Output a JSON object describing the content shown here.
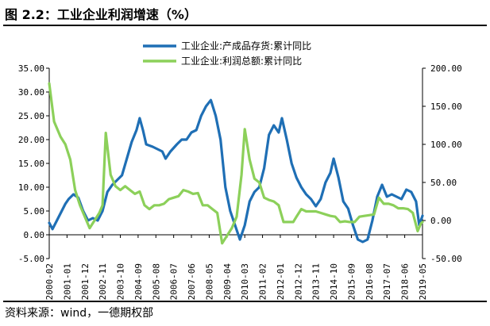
{
  "title": "图 2.2：工业企业利润增速（%）",
  "source": "资料来源：wind，一德期权部",
  "chart_data": {
    "type": "line",
    "left_axis": {
      "min": -5,
      "max": 35,
      "step": 5,
      "ticks": [
        "-5.00",
        "0.00",
        "5.00",
        "10.00",
        "15.00",
        "20.00",
        "25.00",
        "30.00",
        "35.00"
      ]
    },
    "right_axis": {
      "min": -50,
      "max": 200,
      "step": 50,
      "ticks": [
        "-50.00",
        "0.00",
        "50.00",
        "100.00",
        "150.00",
        "200.00"
      ]
    },
    "x_ticks": [
      "2000-02",
      "2001-01",
      "2001-12",
      "2002-11",
      "2003-10",
      "2004-09",
      "2005-08",
      "2006-07",
      "2007-06",
      "2008-05",
      "2009-04",
      "2010-03",
      "2011-02",
      "2012-01",
      "2012-12",
      "2013-11",
      "2014-10",
      "2015-09",
      "2016-08",
      "2017-07",
      "2018-06",
      "2019-05"
    ],
    "legend_position": "top-center",
    "series": [
      {
        "name": "工业企业:产成品存货:累计同比",
        "axis": "left",
        "color": "#1f6fb5",
        "points": [
          [
            "2000-02",
            2.5
          ],
          [
            "2000-04",
            1.2
          ],
          [
            "2000-06",
            2.5
          ],
          [
            "2000-09",
            4.5
          ],
          [
            "2000-12",
            6.5
          ],
          [
            "2001-02",
            7.5
          ],
          [
            "2001-05",
            8.5
          ],
          [
            "2001-08",
            7.8
          ],
          [
            "2001-11",
            5
          ],
          [
            "2002-02",
            3
          ],
          [
            "2002-05",
            3.5
          ],
          [
            "2002-08",
            3
          ],
          [
            "2002-11",
            5
          ],
          [
            "2003-02",
            9
          ],
          [
            "2003-05",
            10.5
          ],
          [
            "2003-08",
            11.5
          ],
          [
            "2003-11",
            12.5
          ],
          [
            "2004-02",
            16
          ],
          [
            "2004-05",
            19.5
          ],
          [
            "2004-08",
            22
          ],
          [
            "2004-10",
            24.5
          ],
          [
            "2004-12",
            22
          ],
          [
            "2005-02",
            19
          ],
          [
            "2005-06",
            18.5
          ],
          [
            "2005-09",
            18
          ],
          [
            "2005-12",
            17.5
          ],
          [
            "2006-02",
            16
          ],
          [
            "2006-05",
            17.5
          ],
          [
            "2006-09",
            19
          ],
          [
            "2006-12",
            20
          ],
          [
            "2007-03",
            20
          ],
          [
            "2007-06",
            21.5
          ],
          [
            "2007-09",
            22
          ],
          [
            "2007-12",
            25
          ],
          [
            "2008-03",
            27
          ],
          [
            "2008-06",
            28.3
          ],
          [
            "2008-09",
            25
          ],
          [
            "2008-12",
            20
          ],
          [
            "2009-03",
            10
          ],
          [
            "2009-06",
            5
          ],
          [
            "2009-09",
            2
          ],
          [
            "2009-12",
            -1
          ],
          [
            "2010-03",
            2
          ],
          [
            "2010-06",
            7
          ],
          [
            "2010-09",
            9
          ],
          [
            "2010-12",
            10
          ],
          [
            "2011-03",
            14
          ],
          [
            "2011-06",
            21
          ],
          [
            "2011-09",
            23
          ],
          [
            "2011-12",
            21.5
          ],
          [
            "2012-02",
            24.5
          ],
          [
            "2012-05",
            20
          ],
          [
            "2012-08",
            15
          ],
          [
            "2012-11",
            12
          ],
          [
            "2013-02",
            10
          ],
          [
            "2013-05",
            8.5
          ],
          [
            "2013-08",
            7.5
          ],
          [
            "2013-11",
            6
          ],
          [
            "2014-02",
            7.5
          ],
          [
            "2014-05",
            11
          ],
          [
            "2014-08",
            13
          ],
          [
            "2014-10",
            16
          ],
          [
            "2015-01",
            12
          ],
          [
            "2015-04",
            7
          ],
          [
            "2015-07",
            5.5
          ],
          [
            "2015-10",
            2
          ],
          [
            "2016-01",
            -1
          ],
          [
            "2016-04",
            -1.5
          ],
          [
            "2016-07",
            -1
          ],
          [
            "2016-10",
            3
          ],
          [
            "2017-01",
            8
          ],
          [
            "2017-04",
            10.5
          ],
          [
            "2017-07",
            8
          ],
          [
            "2017-10",
            8.5
          ],
          [
            "2018-01",
            8
          ],
          [
            "2018-04",
            7.5
          ],
          [
            "2018-07",
            9.5
          ],
          [
            "2018-10",
            9
          ],
          [
            "2019-01",
            7
          ],
          [
            "2019-03",
            2
          ],
          [
            "2019-05",
            4
          ]
        ]
      },
      {
        "name": "工业企业:利润总额:累计同比",
        "axis": "right",
        "color": "#8cd05a",
        "points": [
          [
            "2000-02",
            180
          ],
          [
            "2000-05",
            130
          ],
          [
            "2000-09",
            110
          ],
          [
            "2000-12",
            100
          ],
          [
            "2001-03",
            80
          ],
          [
            "2001-06",
            40
          ],
          [
            "2001-09",
            20
          ],
          [
            "2001-12",
            5
          ],
          [
            "2002-03",
            -10
          ],
          [
            "2002-06",
            0
          ],
          [
            "2002-09",
            10
          ],
          [
            "2002-11",
            20
          ],
          [
            "2003-01",
            115
          ],
          [
            "2003-04",
            60
          ],
          [
            "2003-07",
            45
          ],
          [
            "2003-10",
            40
          ],
          [
            "2004-01",
            45
          ],
          [
            "2004-04",
            40
          ],
          [
            "2004-07",
            35
          ],
          [
            "2004-10",
            38
          ],
          [
            "2005-01",
            20
          ],
          [
            "2005-04",
            15
          ],
          [
            "2005-07",
            20
          ],
          [
            "2005-10",
            20
          ],
          [
            "2006-01",
            22
          ],
          [
            "2006-04",
            28
          ],
          [
            "2006-07",
            30
          ],
          [
            "2006-10",
            32
          ],
          [
            "2007-01",
            40
          ],
          [
            "2007-04",
            38
          ],
          [
            "2007-07",
            35
          ],
          [
            "2007-10",
            36
          ],
          [
            "2008-01",
            20
          ],
          [
            "2008-04",
            20
          ],
          [
            "2008-07",
            15
          ],
          [
            "2008-10",
            10
          ],
          [
            "2009-01",
            -30
          ],
          [
            "2009-04",
            -20
          ],
          [
            "2009-07",
            -10
          ],
          [
            "2009-10",
            5
          ],
          [
            "2010-01",
            60
          ],
          [
            "2010-03",
            120
          ],
          [
            "2010-06",
            80
          ],
          [
            "2010-09",
            55
          ],
          [
            "2010-12",
            50
          ],
          [
            "2011-03",
            30
          ],
          [
            "2011-06",
            27
          ],
          [
            "2011-09",
            25
          ],
          [
            "2011-12",
            20
          ],
          [
            "2012-03",
            -2
          ],
          [
            "2012-06",
            -2
          ],
          [
            "2012-09",
            -2
          ],
          [
            "2012-11",
            5
          ],
          [
            "2013-02",
            15
          ],
          [
            "2013-05",
            12
          ],
          [
            "2013-08",
            12
          ],
          [
            "2013-11",
            12
          ],
          [
            "2014-02",
            10
          ],
          [
            "2014-05",
            8
          ],
          [
            "2014-08",
            6
          ],
          [
            "2014-11",
            5
          ],
          [
            "2015-02",
            -2
          ],
          [
            "2015-05",
            -1
          ],
          [
            "2015-08",
            -2
          ],
          [
            "2015-11",
            -2
          ],
          [
            "2016-02",
            5
          ],
          [
            "2016-05",
            6
          ],
          [
            "2016-08",
            7
          ],
          [
            "2016-11",
            8
          ],
          [
            "2017-02",
            30
          ],
          [
            "2017-05",
            22
          ],
          [
            "2017-08",
            22
          ],
          [
            "2017-11",
            20
          ],
          [
            "2018-02",
            16
          ],
          [
            "2018-05",
            16
          ],
          [
            "2018-08",
            15
          ],
          [
            "2018-11",
            10
          ],
          [
            "2019-02",
            -14
          ],
          [
            "2019-04",
            -4
          ],
          [
            "2019-05",
            -2
          ]
        ]
      }
    ]
  }
}
